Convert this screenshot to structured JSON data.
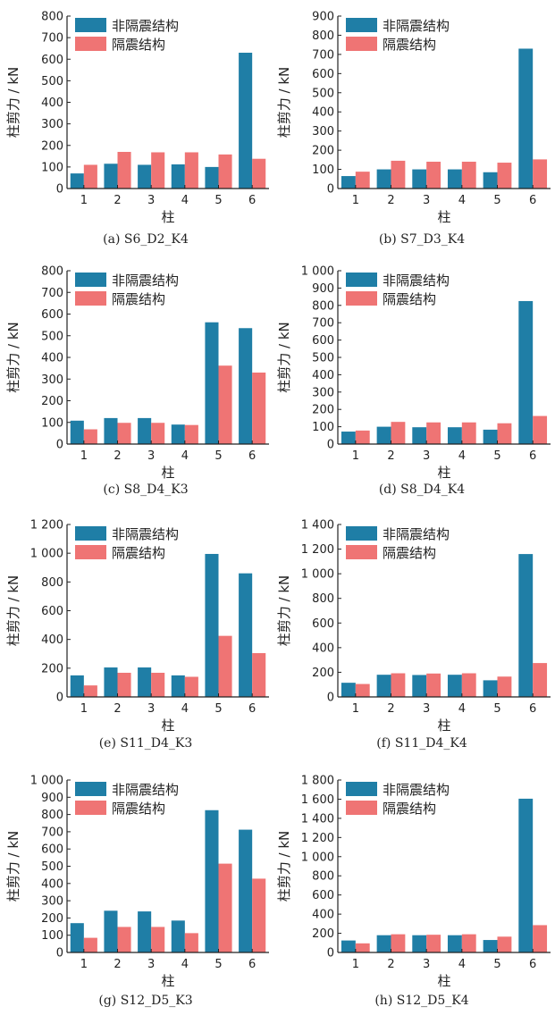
{
  "colors": {
    "non_isolated": "#1f7ea6",
    "isolated": "#ef7474",
    "axis": "#222222"
  },
  "chart_data": [
    {
      "type": "bar",
      "caption": "(a) S6_D2_K4",
      "xlabel": "柱",
      "ylabel": "柱剪力 / kN",
      "categories": [
        "1",
        "2",
        "3",
        "4",
        "5",
        "6"
      ],
      "ylim": [
        0,
        800
      ],
      "yticks": [
        0,
        100,
        200,
        300,
        400,
        500,
        600,
        700,
        800
      ],
      "ytick_labels": [
        "0",
        "100",
        "200",
        "300",
        "400",
        "500",
        "600",
        "700",
        "800"
      ],
      "legend": "top-left",
      "series": [
        {
          "name": "非隔震结构",
          "values": [
            70,
            115,
            110,
            112,
            100,
            630
          ]
        },
        {
          "name": "隔震结构",
          "values": [
            110,
            170,
            168,
            168,
            158,
            138
          ]
        }
      ]
    },
    {
      "type": "bar",
      "caption": "(b) S7_D3_K4",
      "xlabel": "柱",
      "ylabel": "柱剪力 / kN",
      "categories": [
        "1",
        "2",
        "3",
        "4",
        "5",
        "6"
      ],
      "ylim": [
        0,
        900
      ],
      "yticks": [
        0,
        100,
        200,
        300,
        400,
        500,
        600,
        700,
        800,
        900
      ],
      "ytick_labels": [
        "0",
        "100",
        "200",
        "300",
        "400",
        "500",
        "600",
        "700",
        "800",
        "900"
      ],
      "legend": "top-left",
      "series": [
        {
          "name": "非隔震结构",
          "values": [
            65,
            100,
            100,
            100,
            85,
            730
          ]
        },
        {
          "name": "隔震结构",
          "values": [
            88,
            145,
            140,
            140,
            135,
            152
          ]
        }
      ]
    },
    {
      "type": "bar",
      "caption": "(c) S8_D4_K3",
      "xlabel": "柱",
      "ylabel": "柱剪力 / kN",
      "categories": [
        "1",
        "2",
        "3",
        "4",
        "5",
        "6"
      ],
      "ylim": [
        0,
        800
      ],
      "yticks": [
        0,
        100,
        200,
        300,
        400,
        500,
        600,
        700,
        800
      ],
      "ytick_labels": [
        "0",
        "100",
        "200",
        "300",
        "400",
        "500",
        "600",
        "700",
        "800"
      ],
      "legend": "top-left",
      "series": [
        {
          "name": "非隔震结构",
          "values": [
            108,
            120,
            120,
            90,
            562,
            535
          ]
        },
        {
          "name": "隔震结构",
          "values": [
            68,
            98,
            98,
            88,
            362,
            330
          ]
        }
      ]
    },
    {
      "type": "bar",
      "caption": "(d) S8_D4_K4",
      "xlabel": "柱",
      "ylabel": "柱剪力 / kN",
      "categories": [
        "1",
        "2",
        "3",
        "4",
        "5",
        "6"
      ],
      "ylim": [
        0,
        1000
      ],
      "yticks": [
        0,
        100,
        200,
        300,
        400,
        500,
        600,
        700,
        800,
        900,
        1000
      ],
      "ytick_labels": [
        "0",
        "100",
        "200",
        "300",
        "400",
        "500",
        "600",
        "700",
        "800",
        "900",
        "1 000"
      ],
      "legend": "top-left",
      "series": [
        {
          "name": "非隔震结构",
          "values": [
            72,
            100,
            97,
            97,
            83,
            825
          ]
        },
        {
          "name": "隔震结构",
          "values": [
            78,
            128,
            125,
            125,
            120,
            162
          ]
        }
      ]
    },
    {
      "type": "bar",
      "caption": "(e) S11_D4_K3",
      "xlabel": "柱",
      "ylabel": "柱剪力 / kN",
      "categories": [
        "1",
        "2",
        "3",
        "4",
        "5",
        "6"
      ],
      "ylim": [
        0,
        1200
      ],
      "yticks": [
        0,
        200,
        400,
        600,
        800,
        1000,
        1200
      ],
      "ytick_labels": [
        "0",
        "200",
        "400",
        "600",
        "800",
        "1 000",
        "1 200"
      ],
      "legend": "top-left",
      "series": [
        {
          "name": "非隔震结构",
          "values": [
            150,
            205,
            205,
            150,
            995,
            860
          ]
        },
        {
          "name": "隔震结构",
          "values": [
            80,
            168,
            168,
            140,
            425,
            305
          ]
        }
      ]
    },
    {
      "type": "bar",
      "caption": "(f) S11_D4_K4",
      "xlabel": "柱",
      "ylabel": "柱剪力 / kN",
      "categories": [
        "1",
        "2",
        "3",
        "4",
        "5",
        "6"
      ],
      "ylim": [
        0,
        1400
      ],
      "yticks": [
        0,
        200,
        400,
        600,
        800,
        1000,
        1200,
        1400
      ],
      "ytick_labels": [
        "0",
        "200",
        "400",
        "600",
        "800",
        "1 000",
        "1 200",
        "1 400"
      ],
      "legend": "top-left",
      "series": [
        {
          "name": "非隔震结构",
          "values": [
            115,
            180,
            178,
            180,
            135,
            1160
          ]
        },
        {
          "name": "隔震结构",
          "values": [
            105,
            192,
            190,
            192,
            165,
            275
          ]
        }
      ]
    },
    {
      "type": "bar",
      "caption": "(g) S12_D5_K3",
      "xlabel": "柱",
      "ylabel": "柱剪力 / kN",
      "categories": [
        "1",
        "2",
        "3",
        "4",
        "5",
        "6"
      ],
      "ylim": [
        0,
        1000
      ],
      "yticks": [
        0,
        100,
        200,
        300,
        400,
        500,
        600,
        700,
        800,
        900,
        1000
      ],
      "ytick_labels": [
        "0",
        "100",
        "200",
        "300",
        "400",
        "500",
        "600",
        "700",
        "800",
        "900",
        "1 000"
      ],
      "legend": "top-left",
      "series": [
        {
          "name": "非隔震结构",
          "values": [
            170,
            242,
            238,
            185,
            825,
            712
          ]
        },
        {
          "name": "隔震结构",
          "values": [
            85,
            148,
            148,
            112,
            515,
            428
          ]
        }
      ]
    },
    {
      "type": "bar",
      "caption": "(h) S12_D5_K4",
      "xlabel": "柱",
      "ylabel": "柱剪力 / kN",
      "categories": [
        "1",
        "2",
        "3",
        "4",
        "5",
        "6"
      ],
      "ylim": [
        0,
        1800
      ],
      "yticks": [
        0,
        200,
        400,
        600,
        800,
        1000,
        1200,
        1400,
        1600,
        1800
      ],
      "ytick_labels": [
        "0",
        "200",
        "400",
        "600",
        "800",
        "1 000",
        "1 200",
        "1 400",
        "1 600",
        "1 800"
      ],
      "legend": "top-left",
      "series": [
        {
          "name": "非隔震结构",
          "values": [
            125,
            180,
            180,
            180,
            130,
            1605
          ]
        },
        {
          "name": "隔震结构",
          "values": [
            95,
            190,
            185,
            190,
            165,
            285
          ]
        }
      ]
    }
  ]
}
